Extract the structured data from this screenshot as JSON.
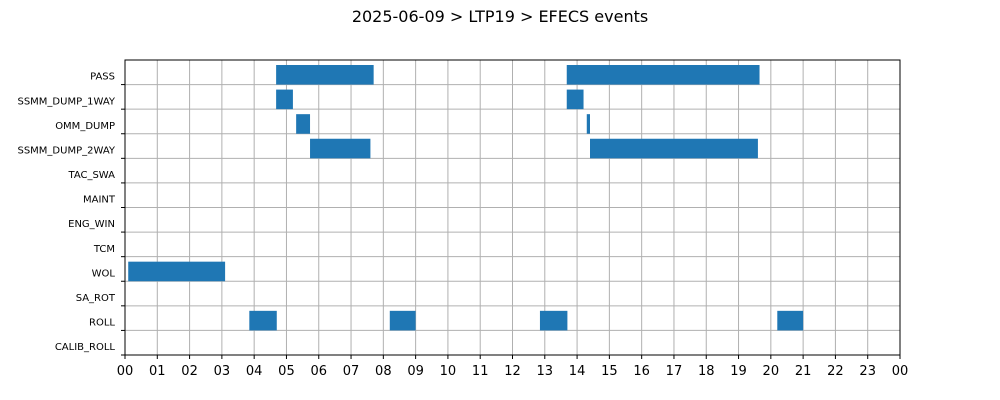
{
  "chart_data": {
    "type": "gantt",
    "title": "2025-06-09 > LTP19 > EFECS events",
    "xlabel": "",
    "ylabel": "",
    "x_range_hours": [
      0,
      24
    ],
    "x_tick_labels": [
      "00",
      "01",
      "02",
      "03",
      "04",
      "05",
      "06",
      "07",
      "08",
      "09",
      "10",
      "11",
      "12",
      "13",
      "14",
      "15",
      "16",
      "17",
      "18",
      "19",
      "20",
      "21",
      "22",
      "23",
      "00"
    ],
    "grid": true,
    "bar_color": "#1f77b4",
    "categories": [
      "PASS",
      "SSMM_DUMP_1WAY",
      "OMM_DUMP",
      "SSMM_DUMP_2WAY",
      "TAC_SWA",
      "MAINT",
      "ENG_WIN",
      "TCM",
      "WOL",
      "SA_ROT",
      "ROLL",
      "CALIB_ROLL"
    ],
    "events": [
      {
        "category": "PASS",
        "start": 4.68,
        "end": 7.7
      },
      {
        "category": "PASS",
        "start": 13.68,
        "end": 19.65
      },
      {
        "category": "SSMM_DUMP_1WAY",
        "start": 4.68,
        "end": 5.2
      },
      {
        "category": "SSMM_DUMP_1WAY",
        "start": 13.68,
        "end": 14.2
      },
      {
        "category": "OMM_DUMP",
        "start": 5.3,
        "end": 5.73
      },
      {
        "category": "OMM_DUMP",
        "start": 14.3,
        "end": 14.4
      },
      {
        "category": "SSMM_DUMP_2WAY",
        "start": 5.73,
        "end": 7.6
      },
      {
        "category": "SSMM_DUMP_2WAY",
        "start": 14.4,
        "end": 19.6
      },
      {
        "category": "WOL",
        "start": 0.1,
        "end": 3.1
      },
      {
        "category": "ROLL",
        "start": 3.85,
        "end": 4.7
      },
      {
        "category": "ROLL",
        "start": 8.2,
        "end": 9.0
      },
      {
        "category": "ROLL",
        "start": 12.85,
        "end": 13.7
      },
      {
        "category": "ROLL",
        "start": 20.2,
        "end": 21.0
      }
    ]
  }
}
